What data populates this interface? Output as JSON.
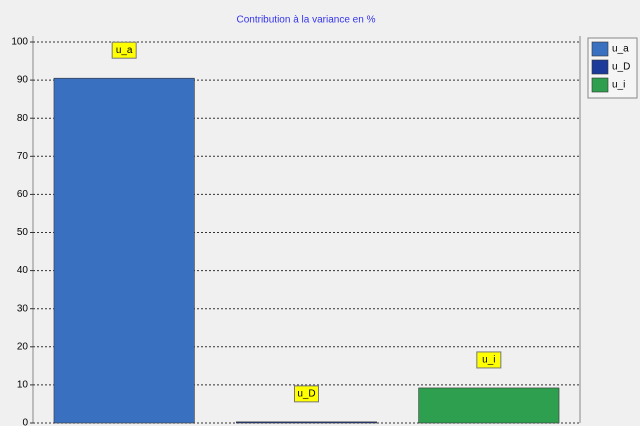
{
  "chart_data": {
    "type": "bar",
    "title": "Contribution à la variance en %",
    "categories": [
      "u_a",
      "u_D",
      "u_i"
    ],
    "values": [
      90.5,
      0.3,
      9.2
    ],
    "colors": [
      "#3a70c0",
      "#1c3a9a",
      "#2e9e4f"
    ],
    "ylim": [
      0,
      100
    ],
    "yticks": [
      0,
      10,
      20,
      30,
      40,
      50,
      60,
      70,
      80,
      90,
      100
    ],
    "grid": true,
    "legend": "right"
  }
}
